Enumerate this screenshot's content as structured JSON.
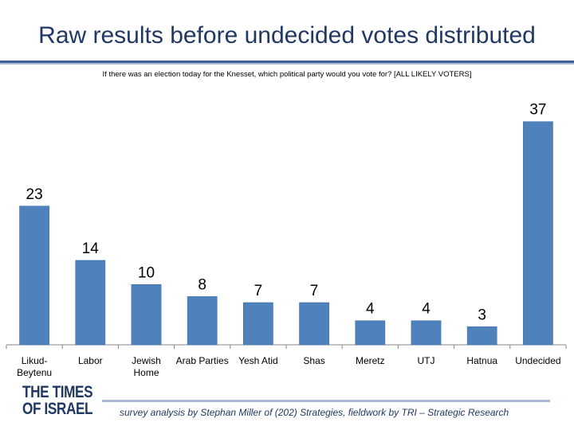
{
  "title": "Raw results before undecided votes distributed",
  "subtitle": "If there was an election today for the Knesset, which political party would you vote for? [ALL LIKELY VOTERS]",
  "logo": {
    "line1": "THE TIMES",
    "line2": "OF ISRAEL"
  },
  "footer": "survey analysis by Stephan Miller of (202) Strategies, fieldwork by TRI – Strategic Research",
  "colors": {
    "bar": "#4f81bd",
    "bar_edge": "#3a6aa0",
    "axis": "#868686",
    "title": "#1f3864"
  },
  "chart_data": {
    "type": "bar",
    "categories": [
      [
        "Likud-",
        "Beytenu"
      ],
      [
        "Labor"
      ],
      [
        "Jewish",
        "Home"
      ],
      [
        "Arab Parties"
      ],
      [
        "Yesh Atid"
      ],
      [
        "Shas"
      ],
      [
        "Meretz"
      ],
      [
        "UTJ"
      ],
      [
        "Hatnua"
      ],
      [
        "Undecided"
      ]
    ],
    "values": [
      23,
      14,
      10,
      8,
      7,
      7,
      4,
      4,
      3,
      37
    ],
    "ylim": [
      0,
      40
    ],
    "grid": false,
    "data_labels": true
  }
}
